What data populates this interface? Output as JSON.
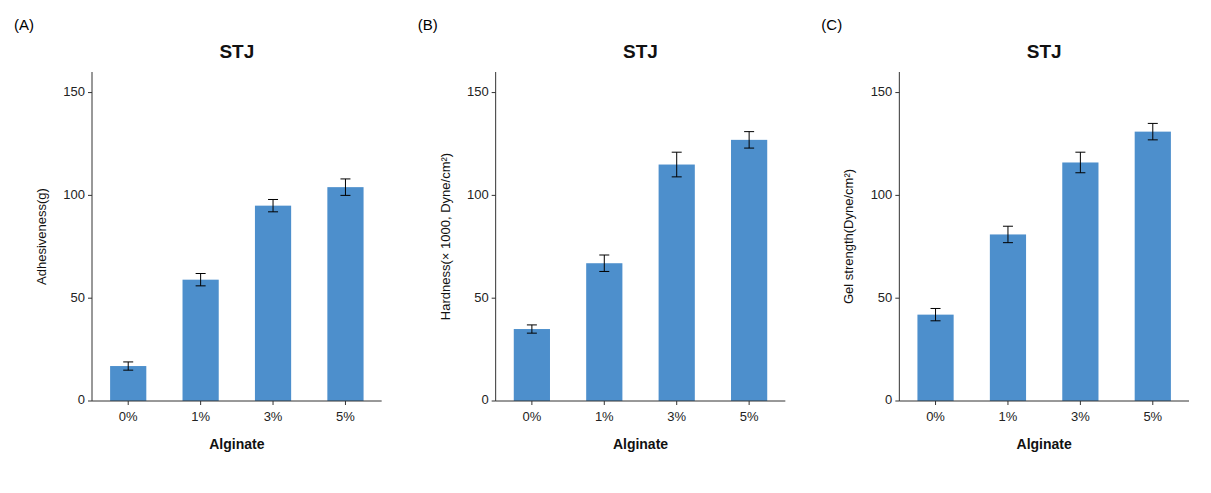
{
  "chart_data": [
    {
      "type": "bar",
      "title": "STJ",
      "annotations": [
        "(A)"
      ],
      "x_label": "Alginate",
      "y_label": "Adhesiveness(g)",
      "categories": [
        "0%",
        "1%",
        "3%",
        "5%"
      ],
      "values": [
        17,
        59,
        95,
        104
      ],
      "errors": [
        2,
        3,
        3,
        4
      ],
      "color": "#4d8fcc",
      "ylim": [
        0,
        160
      ],
      "yticks": [
        0,
        50,
        100,
        150
      ],
      "grid": false
    },
    {
      "type": "bar",
      "title": "STJ",
      "annotations": [
        "(B)"
      ],
      "x_label": "Alginate",
      "y_label": "Hardness(× 1000, Dyne/cm²)",
      "categories": [
        "0%",
        "1%",
        "3%",
        "5%"
      ],
      "values": [
        35,
        67,
        115,
        127
      ],
      "errors": [
        2,
        4,
        6,
        4
      ],
      "color": "#4d8fcc",
      "ylim": [
        0,
        160
      ],
      "yticks": [
        0,
        50,
        100,
        150
      ],
      "grid": false
    },
    {
      "type": "bar",
      "title": "STJ",
      "annotations": [
        "(C)"
      ],
      "x_label": "Alginate",
      "y_label": "Gel strength(Dyne/cm²)",
      "categories": [
        "0%",
        "1%",
        "3%",
        "5%"
      ],
      "values": [
        42,
        81,
        116,
        131
      ],
      "errors": [
        3,
        4,
        5,
        4
      ],
      "color": "#4d8fcc",
      "ylim": [
        0,
        160
      ],
      "yticks": [
        0,
        50,
        100,
        150
      ],
      "grid": false
    }
  ]
}
